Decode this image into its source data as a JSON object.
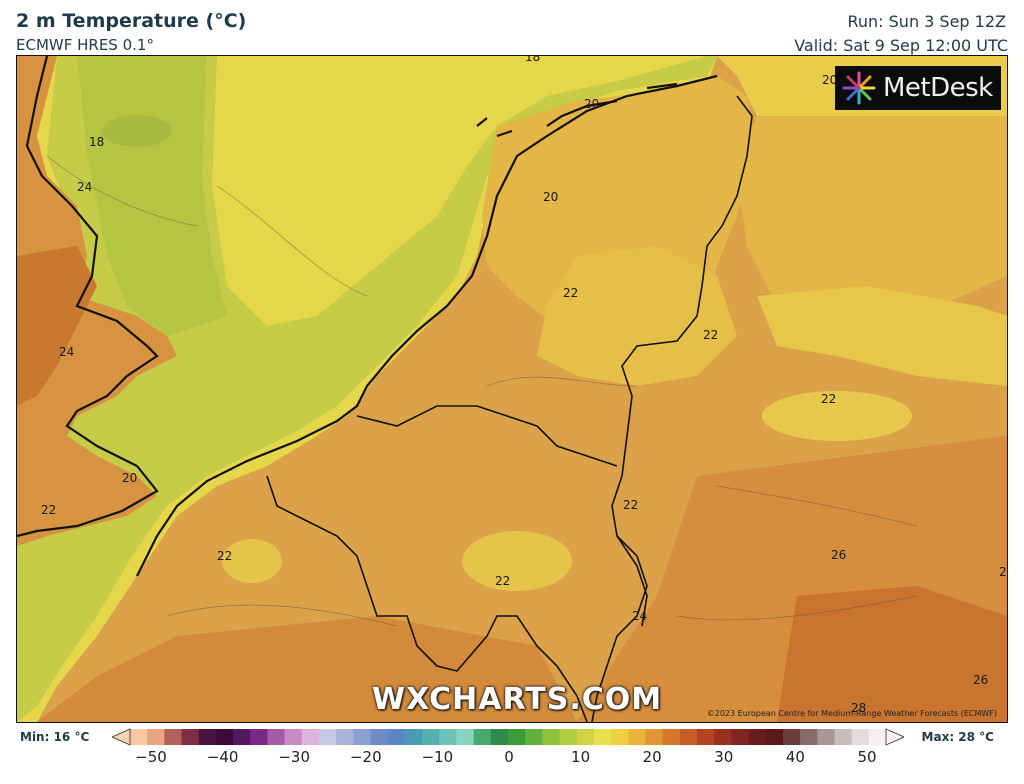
{
  "header": {
    "title": "2 m Temperature (°C)",
    "model": "ECMWF HRES 0.1°",
    "run": "Run: Sun 3 Sep 12Z",
    "valid": "Valid: Sat 9 Sep 12:00 UTC"
  },
  "logo": {
    "text": "MetDesk"
  },
  "watermark": "WXCHARTS.COM",
  "copyright": "©2023 European Centre for Medium-Range Weather Forecasts (ECMWF)",
  "contour_labels": [
    {
      "id": "l1",
      "text": "18"
    },
    {
      "id": "l2",
      "text": "24"
    },
    {
      "id": "l3",
      "text": "24"
    },
    {
      "id": "l4",
      "text": "20"
    },
    {
      "id": "l5",
      "text": "22"
    },
    {
      "id": "l6",
      "text": "18"
    },
    {
      "id": "l7",
      "text": "20"
    },
    {
      "id": "l8",
      "text": "20"
    },
    {
      "id": "l9",
      "text": "20"
    },
    {
      "id": "l10",
      "text": "22"
    },
    {
      "id": "l11",
      "text": "22"
    },
    {
      "id": "l12",
      "text": "22"
    },
    {
      "id": "l13",
      "text": "22"
    },
    {
      "id": "l14",
      "text": "22"
    },
    {
      "id": "l15",
      "text": "22"
    },
    {
      "id": "l16",
      "text": "24"
    },
    {
      "id": "l17",
      "text": "26"
    },
    {
      "id": "l18",
      "text": "26"
    },
    {
      "id": "l19",
      "text": "28"
    },
    {
      "id": "l20",
      "text": "2"
    },
    {
      "id": "l21",
      "text": "20"
    }
  ],
  "legend": {
    "min": "Min: 16 °C",
    "max": "Max: 28 °C",
    "ticks": [
      "−50",
      "−40",
      "−30",
      "−20",
      "−10",
      "0",
      "10",
      "20",
      "30",
      "40",
      "50"
    ],
    "colors": [
      "#f6c9a2",
      "#e8a580",
      "#b55f5a",
      "#7e2f48",
      "#4a1440",
      "#3a0a3a",
      "#55185e",
      "#7a2a86",
      "#a45aa8",
      "#c88cc4",
      "#dcb4dc",
      "#c8c8e6",
      "#a8b4dc",
      "#8aa0d2",
      "#6f8cc8",
      "#5a88c0",
      "#4a9ab4",
      "#54b0b0",
      "#6cc4b8",
      "#88d4c0",
      "#48a870",
      "#2f8a4c",
      "#3c9a3a",
      "#64b03c",
      "#8cc23e",
      "#b0cc40",
      "#d0d444",
      "#e8e04a",
      "#f0d040",
      "#eab43a",
      "#e09632",
      "#d6782c",
      "#c85c28",
      "#b44424",
      "#9a3020",
      "#822420",
      "#6a1c1c",
      "#5a1818",
      "#6a3c3c",
      "#8a6a6a",
      "#aa9898",
      "#c8bcbc",
      "#e4dcdc",
      "#f4f0f0"
    ]
  }
}
